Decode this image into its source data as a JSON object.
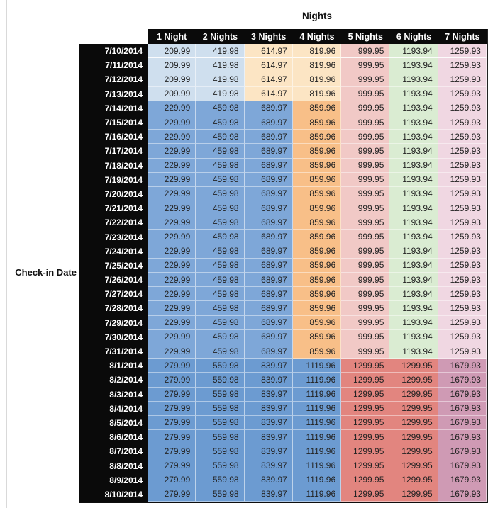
{
  "title": "Nights",
  "row_axis_label": "Check-in Date",
  "colors": {
    "header_background": "#0a0a0a",
    "header_text": "#ffffff",
    "value_text": "#232323",
    "gridline": "#ffffff",
    "outer_border": "#0e0e0e",
    "pane_divider": "#d9d9d9"
  },
  "table": {
    "columns": [
      "1 Night",
      "2 Nights",
      "3 Nights",
      "4 Nights",
      "5 Nights",
      "6 Nights",
      "7 Nights"
    ],
    "section_colors": [
      [
        "#cfdfee",
        "#cfdfee",
        "#fce5c4",
        "#fce5c4",
        "#f1c9c6",
        "#daecd2",
        "#f0d7e2"
      ],
      [
        "#7ea7d8",
        "#7ea7d8",
        "#7ea7d8",
        "#f8bf88",
        "#f1c9c6",
        "#daecd2",
        "#f0d7e2"
      ],
      [
        "#6c9bd1",
        "#6c9bd1",
        "#6c9bd1",
        "#6c9bd1",
        "#e2857f",
        "#e2857f",
        "#cf9ab4"
      ]
    ],
    "rows": [
      {
        "date": "7/10/2014",
        "section": 0,
        "values": [
          "209.99",
          "419.98",
          "614.97",
          "819.96",
          "999.95",
          "1193.94",
          "1259.93"
        ]
      },
      {
        "date": "7/11/2014",
        "section": 0,
        "values": [
          "209.99",
          "419.98",
          "614.97",
          "819.96",
          "999.95",
          "1193.94",
          "1259.93"
        ]
      },
      {
        "date": "7/12/2014",
        "section": 0,
        "values": [
          "209.99",
          "419.98",
          "614.97",
          "819.96",
          "999.95",
          "1193.94",
          "1259.93"
        ]
      },
      {
        "date": "7/13/2014",
        "section": 0,
        "values": [
          "209.99",
          "419.98",
          "614.97",
          "819.96",
          "999.95",
          "1193.94",
          "1259.93"
        ]
      },
      {
        "date": "7/14/2014",
        "section": 1,
        "values": [
          "229.99",
          "459.98",
          "689.97",
          "859.96",
          "999.95",
          "1193.94",
          "1259.93"
        ]
      },
      {
        "date": "7/15/2014",
        "section": 1,
        "values": [
          "229.99",
          "459.98",
          "689.97",
          "859.96",
          "999.95",
          "1193.94",
          "1259.93"
        ]
      },
      {
        "date": "7/16/2014",
        "section": 1,
        "values": [
          "229.99",
          "459.98",
          "689.97",
          "859.96",
          "999.95",
          "1193.94",
          "1259.93"
        ]
      },
      {
        "date": "7/17/2014",
        "section": 1,
        "values": [
          "229.99",
          "459.98",
          "689.97",
          "859.96",
          "999.95",
          "1193.94",
          "1259.93"
        ]
      },
      {
        "date": "7/18/2014",
        "section": 1,
        "values": [
          "229.99",
          "459.98",
          "689.97",
          "859.96",
          "999.95",
          "1193.94",
          "1259.93"
        ]
      },
      {
        "date": "7/19/2014",
        "section": 1,
        "values": [
          "229.99",
          "459.98",
          "689.97",
          "859.96",
          "999.95",
          "1193.94",
          "1259.93"
        ]
      },
      {
        "date": "7/20/2014",
        "section": 1,
        "values": [
          "229.99",
          "459.98",
          "689.97",
          "859.96",
          "999.95",
          "1193.94",
          "1259.93"
        ]
      },
      {
        "date": "7/21/2014",
        "section": 1,
        "values": [
          "229.99",
          "459.98",
          "689.97",
          "859.96",
          "999.95",
          "1193.94",
          "1259.93"
        ]
      },
      {
        "date": "7/22/2014",
        "section": 1,
        "values": [
          "229.99",
          "459.98",
          "689.97",
          "859.96",
          "999.95",
          "1193.94",
          "1259.93"
        ]
      },
      {
        "date": "7/23/2014",
        "section": 1,
        "values": [
          "229.99",
          "459.98",
          "689.97",
          "859.96",
          "999.95",
          "1193.94",
          "1259.93"
        ]
      },
      {
        "date": "7/24/2014",
        "section": 1,
        "values": [
          "229.99",
          "459.98",
          "689.97",
          "859.96",
          "999.95",
          "1193.94",
          "1259.93"
        ]
      },
      {
        "date": "7/25/2014",
        "section": 1,
        "values": [
          "229.99",
          "459.98",
          "689.97",
          "859.96",
          "999.95",
          "1193.94",
          "1259.93"
        ]
      },
      {
        "date": "7/26/2014",
        "section": 1,
        "values": [
          "229.99",
          "459.98",
          "689.97",
          "859.96",
          "999.95",
          "1193.94",
          "1259.93"
        ]
      },
      {
        "date": "7/27/2014",
        "section": 1,
        "values": [
          "229.99",
          "459.98",
          "689.97",
          "859.96",
          "999.95",
          "1193.94",
          "1259.93"
        ]
      },
      {
        "date": "7/28/2014",
        "section": 1,
        "values": [
          "229.99",
          "459.98",
          "689.97",
          "859.96",
          "999.95",
          "1193.94",
          "1259.93"
        ]
      },
      {
        "date": "7/29/2014",
        "section": 1,
        "values": [
          "229.99",
          "459.98",
          "689.97",
          "859.96",
          "999.95",
          "1193.94",
          "1259.93"
        ]
      },
      {
        "date": "7/30/2014",
        "section": 1,
        "values": [
          "229.99",
          "459.98",
          "689.97",
          "859.96",
          "999.95",
          "1193.94",
          "1259.93"
        ]
      },
      {
        "date": "7/31/2014",
        "section": 1,
        "values": [
          "229.99",
          "459.98",
          "689.97",
          "859.96",
          "999.95",
          "1193.94",
          "1259.93"
        ]
      },
      {
        "date": "8/1/2014",
        "section": 2,
        "values": [
          "279.99",
          "559.98",
          "839.97",
          "1119.96",
          "1299.95",
          "1299.95",
          "1679.93"
        ]
      },
      {
        "date": "8/2/2014",
        "section": 2,
        "values": [
          "279.99",
          "559.98",
          "839.97",
          "1119.96",
          "1299.95",
          "1299.95",
          "1679.93"
        ]
      },
      {
        "date": "8/3/2014",
        "section": 2,
        "values": [
          "279.99",
          "559.98",
          "839.97",
          "1119.96",
          "1299.95",
          "1299.95",
          "1679.93"
        ]
      },
      {
        "date": "8/4/2014",
        "section": 2,
        "values": [
          "279.99",
          "559.98",
          "839.97",
          "1119.96",
          "1299.95",
          "1299.95",
          "1679.93"
        ]
      },
      {
        "date": "8/5/2014",
        "section": 2,
        "values": [
          "279.99",
          "559.98",
          "839.97",
          "1119.96",
          "1299.95",
          "1299.95",
          "1679.93"
        ]
      },
      {
        "date": "8/6/2014",
        "section": 2,
        "values": [
          "279.99",
          "559.98",
          "839.97",
          "1119.96",
          "1299.95",
          "1299.95",
          "1679.93"
        ]
      },
      {
        "date": "8/7/2014",
        "section": 2,
        "values": [
          "279.99",
          "559.98",
          "839.97",
          "1119.96",
          "1299.95",
          "1299.95",
          "1679.93"
        ]
      },
      {
        "date": "8/8/2014",
        "section": 2,
        "values": [
          "279.99",
          "559.98",
          "839.97",
          "1119.96",
          "1299.95",
          "1299.95",
          "1679.93"
        ]
      },
      {
        "date": "8/9/2014",
        "section": 2,
        "values": [
          "279.99",
          "559.98",
          "839.97",
          "1119.96",
          "1299.95",
          "1299.95",
          "1679.93"
        ]
      },
      {
        "date": "8/10/2014",
        "section": 2,
        "values": [
          "279.99",
          "559.98",
          "839.97",
          "1119.96",
          "1299.95",
          "1299.95",
          "1679.93"
        ]
      }
    ]
  }
}
